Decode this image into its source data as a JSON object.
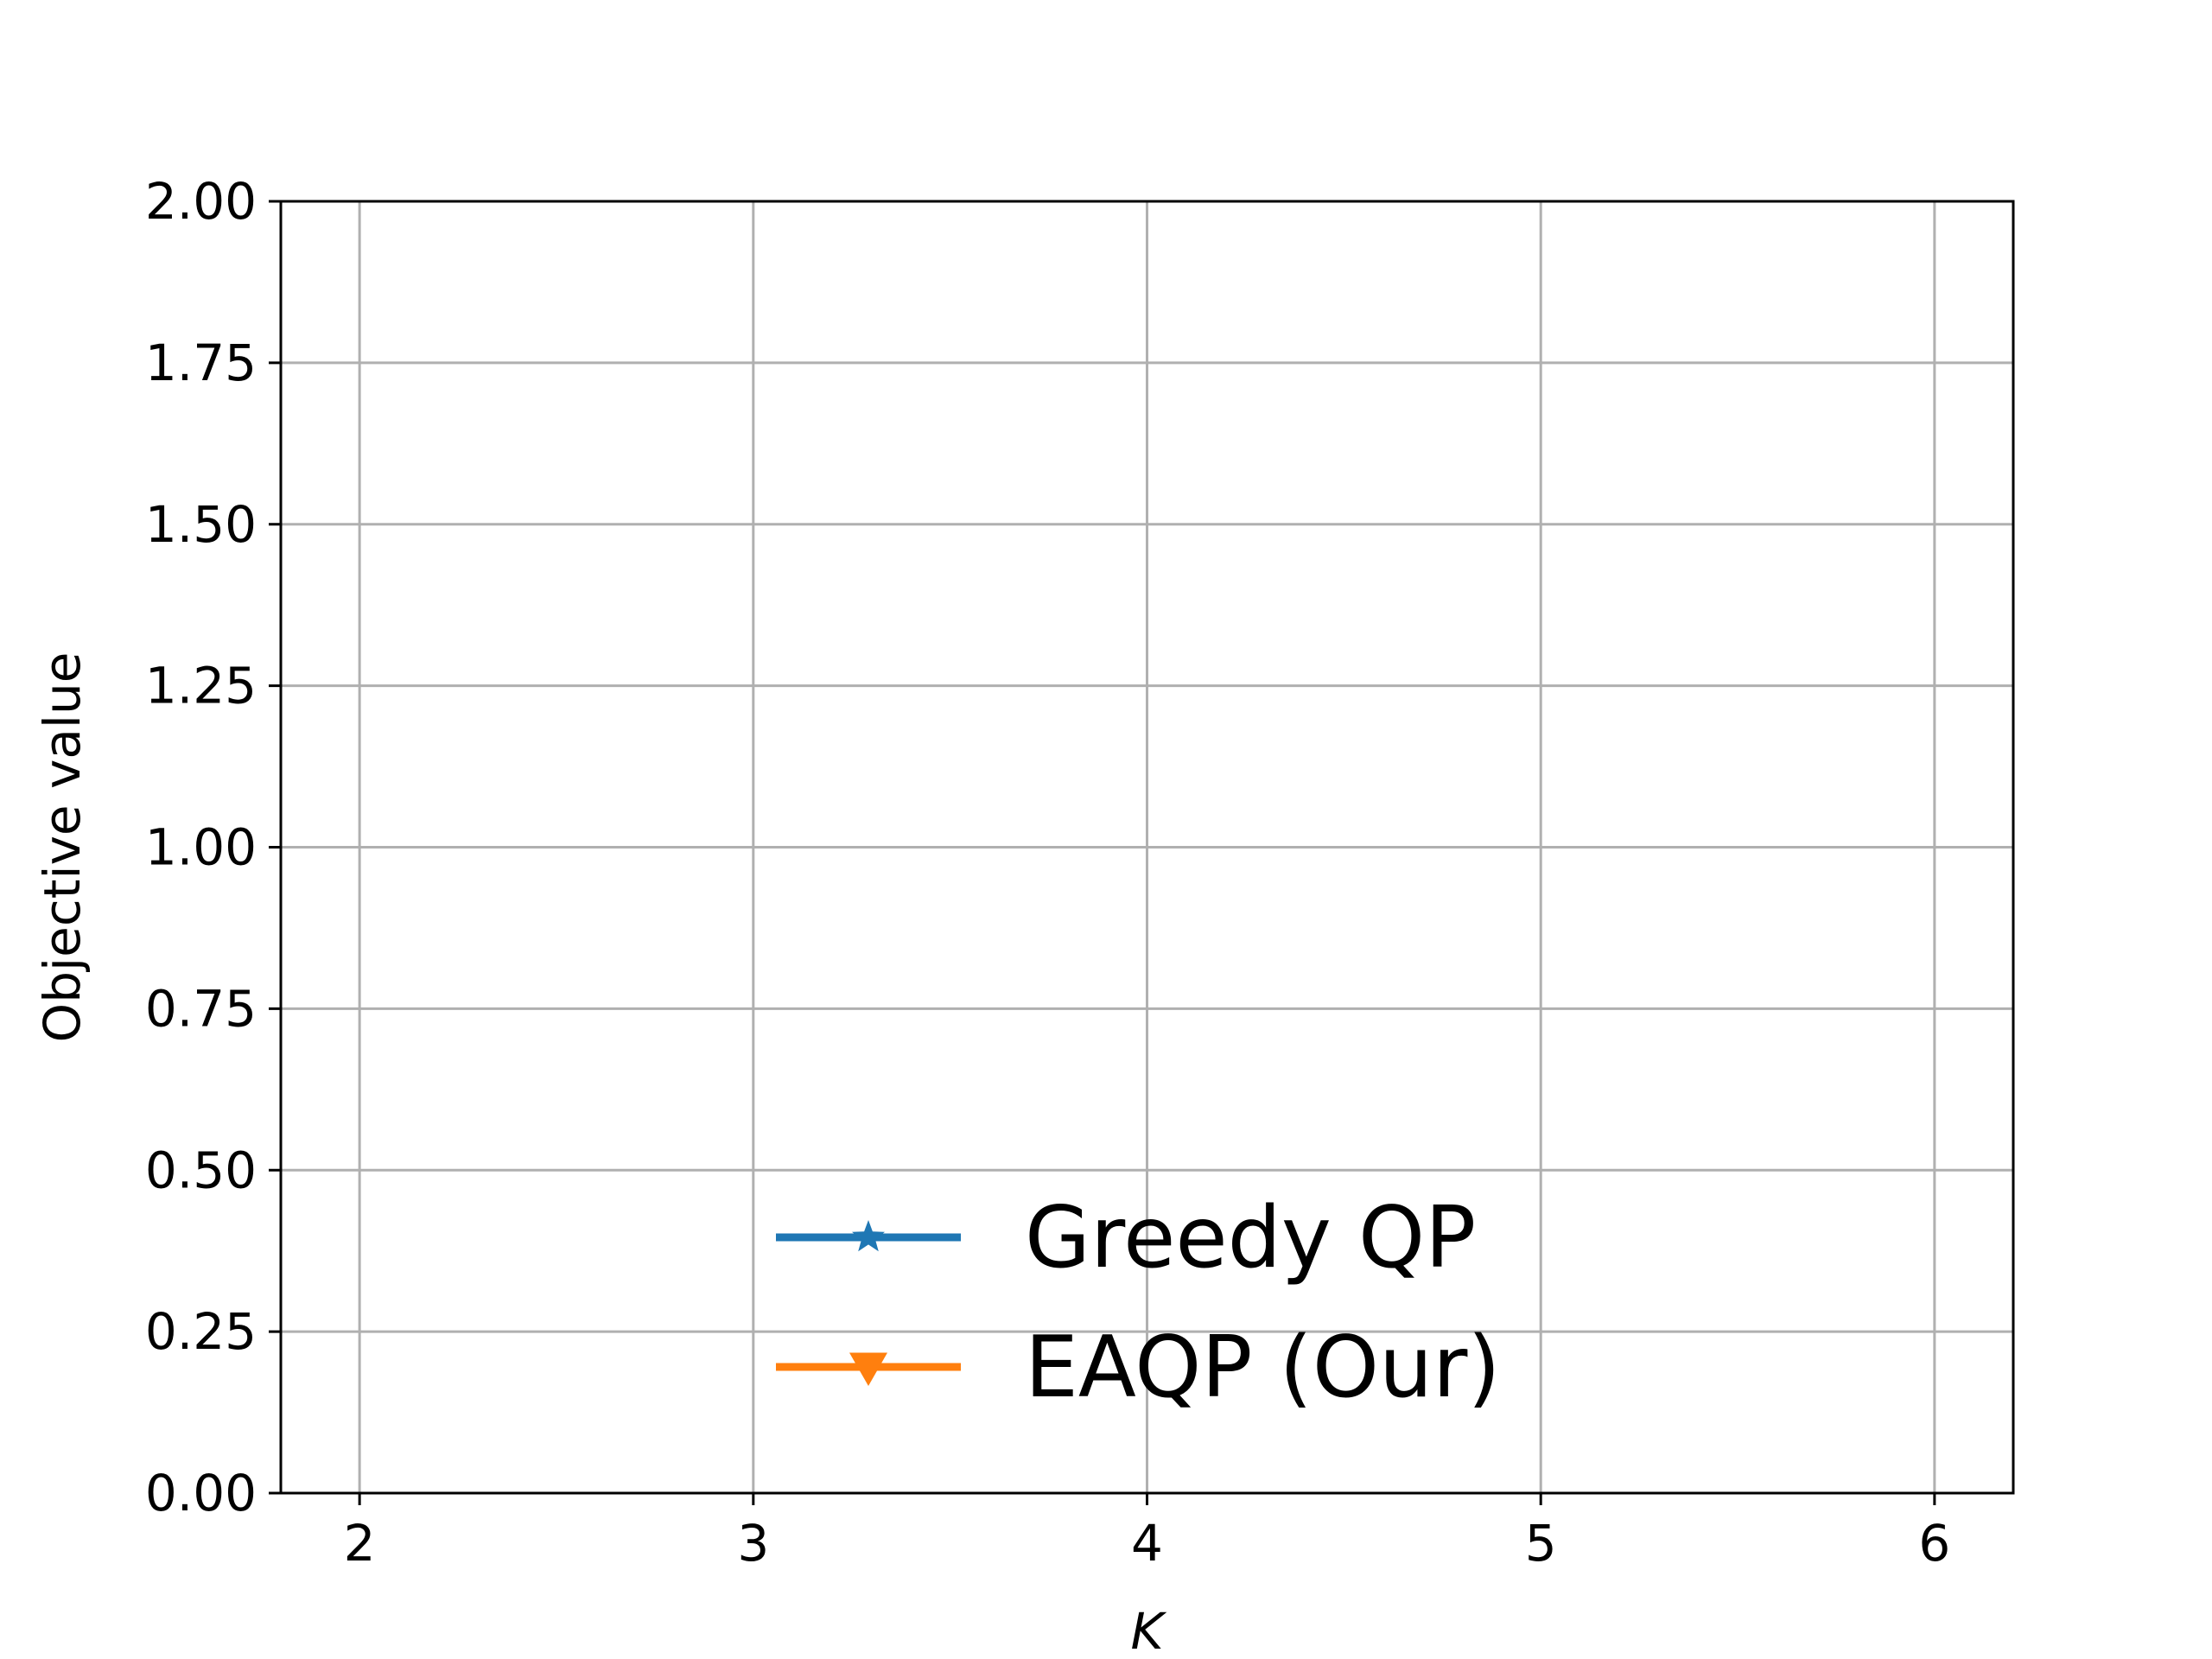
{
  "chart_data": {
    "type": "line",
    "title": "",
    "xlabel": "K",
    "ylabel": "Objective value",
    "xlim": [
      1.8,
      6.2
    ],
    "ylim": [
      0,
      2
    ],
    "x_ticks": [
      "2",
      "3",
      "4",
      "5",
      "6"
    ],
    "y_ticks": [
      "0.00",
      "0.25",
      "0.50",
      "0.75",
      "1.00",
      "1.25",
      "1.50",
      "1.75",
      "2.00"
    ],
    "grid": true,
    "legend_position": "lower-center",
    "series": [
      {
        "name": "Greedy QP",
        "color": "#1f77b4",
        "marker": "star",
        "x": [],
        "y": []
      },
      {
        "name": "EAQP (Our)",
        "color": "#ff7f0e",
        "marker": "triangle-down",
        "x": [],
        "y": []
      }
    ]
  }
}
